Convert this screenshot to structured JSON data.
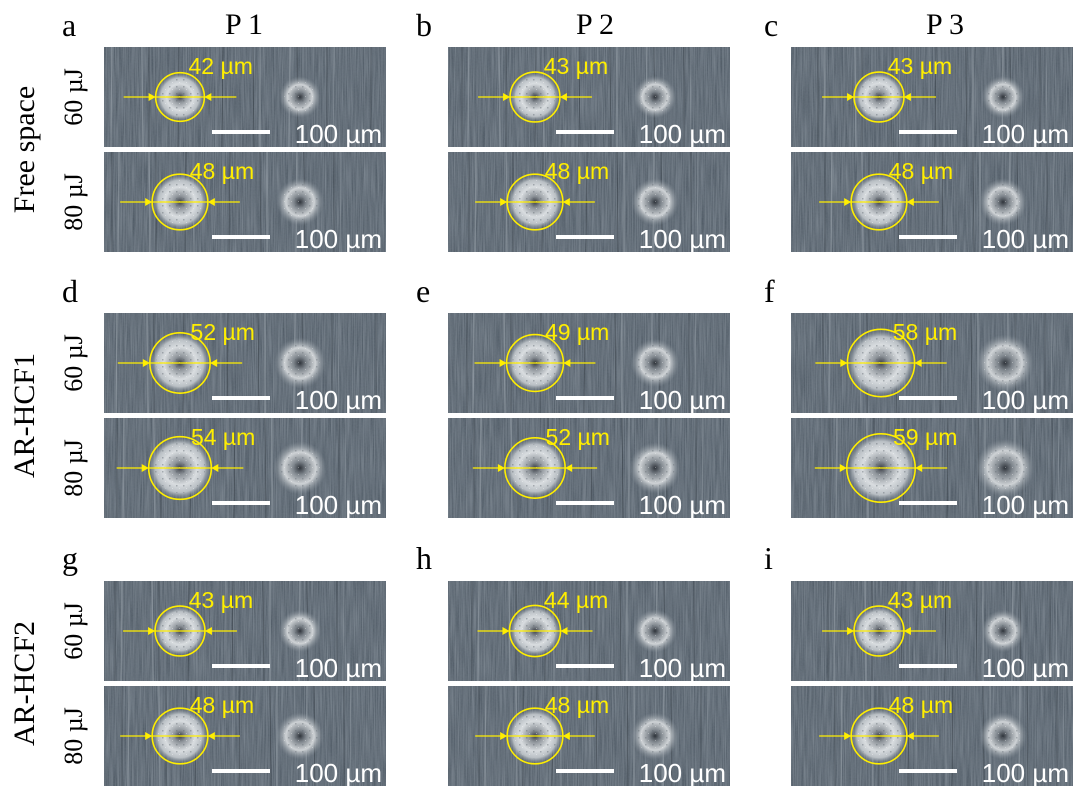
{
  "columns": [
    "P 1",
    "P 2",
    "P 3"
  ],
  "groups": [
    {
      "label": "Free space",
      "panels": [
        {
          "letter": "a",
          "rows": [
            {
              "energy": "60 µJ",
              "diameter": "42 µm",
              "d": 42
            },
            {
              "energy": "80 µJ",
              "diameter": "48 µm",
              "d": 48
            }
          ]
        },
        {
          "letter": "b",
          "rows": [
            {
              "energy": "60 µJ",
              "diameter": "43 µm",
              "d": 43
            },
            {
              "energy": "80 µJ",
              "diameter": "48 µm",
              "d": 48
            }
          ]
        },
        {
          "letter": "c",
          "rows": [
            {
              "energy": "60 µJ",
              "diameter": "43 µm",
              "d": 43
            },
            {
              "energy": "80 µJ",
              "diameter": "48 µm",
              "d": 48
            }
          ]
        }
      ]
    },
    {
      "label": "AR-HCF1",
      "panels": [
        {
          "letter": "d",
          "rows": [
            {
              "energy": "60 µJ",
              "diameter": "52 µm",
              "d": 52
            },
            {
              "energy": "80 µJ",
              "diameter": "54 µm",
              "d": 54
            }
          ]
        },
        {
          "letter": "e",
          "rows": [
            {
              "energy": "60 µJ",
              "diameter": "49 µm",
              "d": 49
            },
            {
              "energy": "80 µJ",
              "diameter": "52 µm",
              "d": 52
            }
          ]
        },
        {
          "letter": "f",
          "rows": [
            {
              "energy": "60 µJ",
              "diameter": "58 µm",
              "d": 58
            },
            {
              "energy": "80 µJ",
              "diameter": "59 µm",
              "d": 59
            }
          ]
        }
      ]
    },
    {
      "label": "AR-HCF2",
      "panels": [
        {
          "letter": "g",
          "rows": [
            {
              "energy": "60 µJ",
              "diameter": "43 µm",
              "d": 43
            },
            {
              "energy": "80 µJ",
              "diameter": "48 µm",
              "d": 48
            }
          ]
        },
        {
          "letter": "h",
          "rows": [
            {
              "energy": "60 µJ",
              "diameter": "44 µm",
              "d": 44
            },
            {
              "energy": "80 µJ",
              "diameter": "48 µm",
              "d": 48
            }
          ]
        },
        {
          "letter": "i",
          "rows": [
            {
              "energy": "60 µJ",
              "diameter": "43 µm",
              "d": 43
            },
            {
              "energy": "80 µJ",
              "diameter": "48 µm",
              "d": 48
            }
          ]
        }
      ]
    }
  ],
  "scale_bar_label": "100 µm",
  "scale_bar_um": 100,
  "colors": {
    "annotation": "#ffee00",
    "scale_bar": "#ffffff",
    "metal_base": "#4a5560"
  }
}
